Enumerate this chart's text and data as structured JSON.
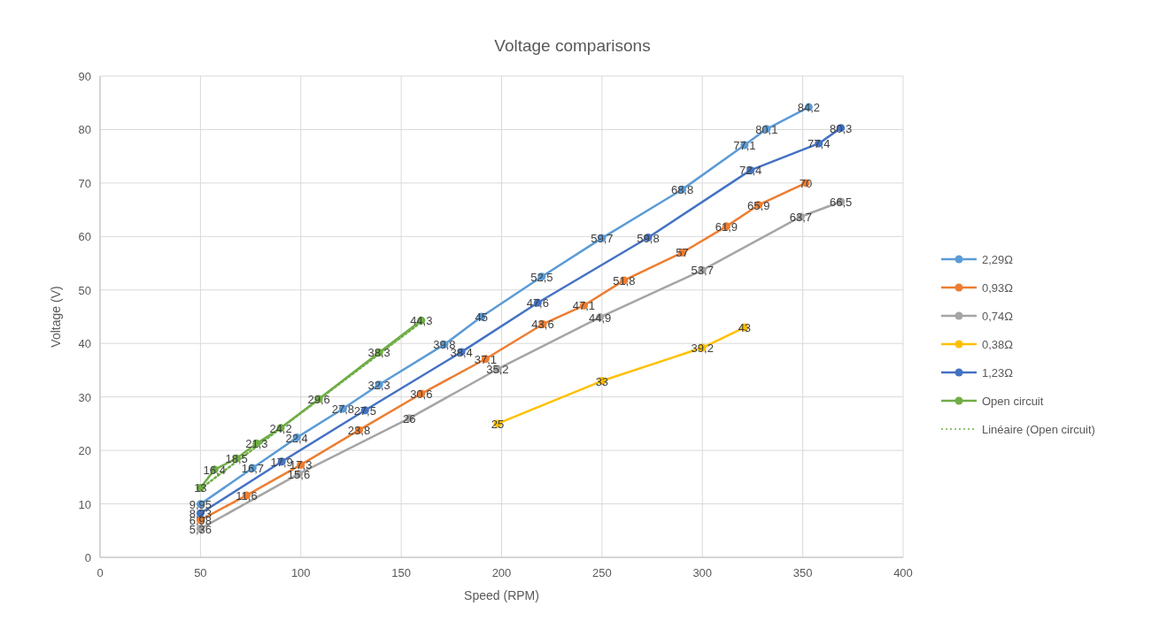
{
  "chart_data": {
    "type": "line",
    "title": "Voltage comparisons",
    "xlabel": "Speed (RPM)",
    "ylabel": "Voltage (V)",
    "xlim": [
      0,
      400
    ],
    "xticks": [
      0,
      50,
      100,
      150,
      200,
      250,
      300,
      350,
      400
    ],
    "ylim": [
      0,
      90
    ],
    "yticks": [
      0,
      10,
      20,
      30,
      40,
      50,
      60,
      70,
      80,
      90
    ],
    "grid": true,
    "legend": "right",
    "marker": "circle",
    "line_style": "solid",
    "series": [
      {
        "name": "2,29Ω",
        "color": "#5b9bd5",
        "x": [
          50,
          76,
          98,
          121,
          139,
          171.5,
          190,
          220,
          250,
          290,
          321,
          332,
          353
        ],
        "values": [
          9.95,
          16.7,
          22.4,
          27.8,
          32.3,
          39.8,
          45,
          52.5,
          59.7,
          68.8,
          77.1,
          80.1,
          84.2
        ],
        "value_labels": [
          "9,95",
          "16,7",
          "22,4",
          "27,8",
          "32,3",
          "39,8",
          "45",
          "52,5",
          "59,7",
          "68,8",
          "77,1",
          "80,1",
          "84,2"
        ]
      },
      {
        "name": "0,93Ω",
        "color": "#ed7d31",
        "x": [
          50,
          73,
          100,
          129,
          160,
          192,
          220.5,
          241,
          261,
          290,
          312,
          328,
          351.5
        ],
        "values": [
          6.98,
          11.6,
          17.3,
          23.8,
          30.6,
          37.1,
          43.6,
          47.1,
          51.8,
          57,
          61.9,
          65.9,
          70
        ],
        "value_labels": [
          "6,98",
          "11,6",
          "17,3",
          "23,8",
          "30,6",
          "37,1",
          "43,6",
          "47,1",
          "51,8",
          "57",
          "61,9",
          "65,9",
          "70"
        ]
      },
      {
        "name": "0,74Ω",
        "color": "#a5a5a5",
        "x": [
          50,
          99,
          154,
          198,
          249,
          300,
          349,
          369
        ],
        "values": [
          5.36,
          15.6,
          26,
          35.2,
          44.9,
          53.7,
          63.7,
          66.5
        ],
        "value_labels": [
          "5,36",
          "15,6",
          "26",
          "35,2",
          "44,9",
          "53,7",
          "63,7",
          "66,5"
        ]
      },
      {
        "name": "0,38Ω",
        "color": "#ffc000",
        "x": [
          198,
          250,
          300,
          321
        ],
        "values": [
          25,
          33,
          39.2,
          43
        ],
        "value_labels": [
          "25",
          "33",
          "39,2",
          "43"
        ]
      },
      {
        "name": "1,23Ω",
        "color": "#4472c4",
        "x": [
          50,
          90.5,
          132,
          180,
          218,
          273,
          324,
          358,
          369
        ],
        "values": [
          8.23,
          17.9,
          27.5,
          38.4,
          47.6,
          59.8,
          72.4,
          77.4,
          80.3
        ],
        "value_labels": [
          "8,23",
          "17,9",
          "27,5",
          "38,4",
          "47,6",
          "59,8",
          "72,4",
          "77,4",
          "80,3"
        ]
      },
      {
        "name": "Open circuit",
        "color": "#70ad47",
        "x": [
          50,
          57,
          68,
          78,
          90,
          109,
          139,
          160
        ],
        "values": [
          13,
          16.4,
          18.5,
          21.3,
          24.2,
          29.6,
          38.3,
          44.3
        ],
        "value_labels": [
          "13",
          "16,4",
          "18,5",
          "21,3",
          "24,2",
          "29,6",
          "38,3",
          "44,3"
        ]
      },
      {
        "name": "Linéaire  (Open circuit)",
        "color": "#70ad47",
        "x": [
          50,
          160
        ],
        "values": [
          12.8,
          44
        ],
        "line_style": "dotted",
        "marker": "none"
      }
    ]
  }
}
